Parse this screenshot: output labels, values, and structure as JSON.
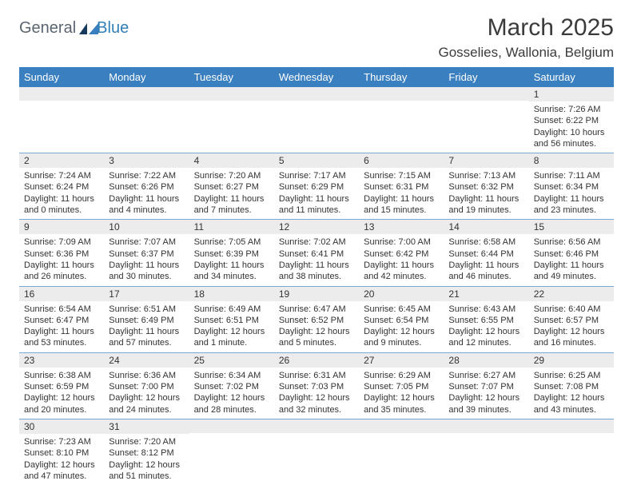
{
  "logo": {
    "text1": "General",
    "text2": "Blue"
  },
  "title": "March 2025",
  "location": "Gosselies, Wallonia, Belgium",
  "colors": {
    "header_bg": "#3a7fb8",
    "header_text": "#ffffff",
    "daynum_bg": "#ececec",
    "cell_border": "#7aa9d4",
    "logo_gray": "#5a6570",
    "logo_blue": "#2f7fb8",
    "text": "#333333"
  },
  "days_of_week": [
    "Sunday",
    "Monday",
    "Tuesday",
    "Wednesday",
    "Thursday",
    "Friday",
    "Saturday"
  ],
  "weeks": [
    [
      {
        "blank": true
      },
      {
        "blank": true
      },
      {
        "blank": true
      },
      {
        "blank": true
      },
      {
        "blank": true
      },
      {
        "blank": true
      },
      {
        "n": "1",
        "sunrise": "Sunrise: 7:26 AM",
        "sunset": "Sunset: 6:22 PM",
        "day1": "Daylight: 10 hours",
        "day2": "and 56 minutes."
      }
    ],
    [
      {
        "n": "2",
        "sunrise": "Sunrise: 7:24 AM",
        "sunset": "Sunset: 6:24 PM",
        "day1": "Daylight: 11 hours",
        "day2": "and 0 minutes."
      },
      {
        "n": "3",
        "sunrise": "Sunrise: 7:22 AM",
        "sunset": "Sunset: 6:26 PM",
        "day1": "Daylight: 11 hours",
        "day2": "and 4 minutes."
      },
      {
        "n": "4",
        "sunrise": "Sunrise: 7:20 AM",
        "sunset": "Sunset: 6:27 PM",
        "day1": "Daylight: 11 hours",
        "day2": "and 7 minutes."
      },
      {
        "n": "5",
        "sunrise": "Sunrise: 7:17 AM",
        "sunset": "Sunset: 6:29 PM",
        "day1": "Daylight: 11 hours",
        "day2": "and 11 minutes."
      },
      {
        "n": "6",
        "sunrise": "Sunrise: 7:15 AM",
        "sunset": "Sunset: 6:31 PM",
        "day1": "Daylight: 11 hours",
        "day2": "and 15 minutes."
      },
      {
        "n": "7",
        "sunrise": "Sunrise: 7:13 AM",
        "sunset": "Sunset: 6:32 PM",
        "day1": "Daylight: 11 hours",
        "day2": "and 19 minutes."
      },
      {
        "n": "8",
        "sunrise": "Sunrise: 7:11 AM",
        "sunset": "Sunset: 6:34 PM",
        "day1": "Daylight: 11 hours",
        "day2": "and 23 minutes."
      }
    ],
    [
      {
        "n": "9",
        "sunrise": "Sunrise: 7:09 AM",
        "sunset": "Sunset: 6:36 PM",
        "day1": "Daylight: 11 hours",
        "day2": "and 26 minutes."
      },
      {
        "n": "10",
        "sunrise": "Sunrise: 7:07 AM",
        "sunset": "Sunset: 6:37 PM",
        "day1": "Daylight: 11 hours",
        "day2": "and 30 minutes."
      },
      {
        "n": "11",
        "sunrise": "Sunrise: 7:05 AM",
        "sunset": "Sunset: 6:39 PM",
        "day1": "Daylight: 11 hours",
        "day2": "and 34 minutes."
      },
      {
        "n": "12",
        "sunrise": "Sunrise: 7:02 AM",
        "sunset": "Sunset: 6:41 PM",
        "day1": "Daylight: 11 hours",
        "day2": "and 38 minutes."
      },
      {
        "n": "13",
        "sunrise": "Sunrise: 7:00 AM",
        "sunset": "Sunset: 6:42 PM",
        "day1": "Daylight: 11 hours",
        "day2": "and 42 minutes."
      },
      {
        "n": "14",
        "sunrise": "Sunrise: 6:58 AM",
        "sunset": "Sunset: 6:44 PM",
        "day1": "Daylight: 11 hours",
        "day2": "and 46 minutes."
      },
      {
        "n": "15",
        "sunrise": "Sunrise: 6:56 AM",
        "sunset": "Sunset: 6:46 PM",
        "day1": "Daylight: 11 hours",
        "day2": "and 49 minutes."
      }
    ],
    [
      {
        "n": "16",
        "sunrise": "Sunrise: 6:54 AM",
        "sunset": "Sunset: 6:47 PM",
        "day1": "Daylight: 11 hours",
        "day2": "and 53 minutes."
      },
      {
        "n": "17",
        "sunrise": "Sunrise: 6:51 AM",
        "sunset": "Sunset: 6:49 PM",
        "day1": "Daylight: 11 hours",
        "day2": "and 57 minutes."
      },
      {
        "n": "18",
        "sunrise": "Sunrise: 6:49 AM",
        "sunset": "Sunset: 6:51 PM",
        "day1": "Daylight: 12 hours",
        "day2": "and 1 minute."
      },
      {
        "n": "19",
        "sunrise": "Sunrise: 6:47 AM",
        "sunset": "Sunset: 6:52 PM",
        "day1": "Daylight: 12 hours",
        "day2": "and 5 minutes."
      },
      {
        "n": "20",
        "sunrise": "Sunrise: 6:45 AM",
        "sunset": "Sunset: 6:54 PM",
        "day1": "Daylight: 12 hours",
        "day2": "and 9 minutes."
      },
      {
        "n": "21",
        "sunrise": "Sunrise: 6:43 AM",
        "sunset": "Sunset: 6:55 PM",
        "day1": "Daylight: 12 hours",
        "day2": "and 12 minutes."
      },
      {
        "n": "22",
        "sunrise": "Sunrise: 6:40 AM",
        "sunset": "Sunset: 6:57 PM",
        "day1": "Daylight: 12 hours",
        "day2": "and 16 minutes."
      }
    ],
    [
      {
        "n": "23",
        "sunrise": "Sunrise: 6:38 AM",
        "sunset": "Sunset: 6:59 PM",
        "day1": "Daylight: 12 hours",
        "day2": "and 20 minutes."
      },
      {
        "n": "24",
        "sunrise": "Sunrise: 6:36 AM",
        "sunset": "Sunset: 7:00 PM",
        "day1": "Daylight: 12 hours",
        "day2": "and 24 minutes."
      },
      {
        "n": "25",
        "sunrise": "Sunrise: 6:34 AM",
        "sunset": "Sunset: 7:02 PM",
        "day1": "Daylight: 12 hours",
        "day2": "and 28 minutes."
      },
      {
        "n": "26",
        "sunrise": "Sunrise: 6:31 AM",
        "sunset": "Sunset: 7:03 PM",
        "day1": "Daylight: 12 hours",
        "day2": "and 32 minutes."
      },
      {
        "n": "27",
        "sunrise": "Sunrise: 6:29 AM",
        "sunset": "Sunset: 7:05 PM",
        "day1": "Daylight: 12 hours",
        "day2": "and 35 minutes."
      },
      {
        "n": "28",
        "sunrise": "Sunrise: 6:27 AM",
        "sunset": "Sunset: 7:07 PM",
        "day1": "Daylight: 12 hours",
        "day2": "and 39 minutes."
      },
      {
        "n": "29",
        "sunrise": "Sunrise: 6:25 AM",
        "sunset": "Sunset: 7:08 PM",
        "day1": "Daylight: 12 hours",
        "day2": "and 43 minutes."
      }
    ],
    [
      {
        "n": "30",
        "sunrise": "Sunrise: 7:23 AM",
        "sunset": "Sunset: 8:10 PM",
        "day1": "Daylight: 12 hours",
        "day2": "and 47 minutes."
      },
      {
        "n": "31",
        "sunrise": "Sunrise: 7:20 AM",
        "sunset": "Sunset: 8:12 PM",
        "day1": "Daylight: 12 hours",
        "day2": "and 51 minutes."
      },
      {
        "blank": true
      },
      {
        "blank": true
      },
      {
        "blank": true
      },
      {
        "blank": true
      },
      {
        "blank": true
      }
    ]
  ]
}
